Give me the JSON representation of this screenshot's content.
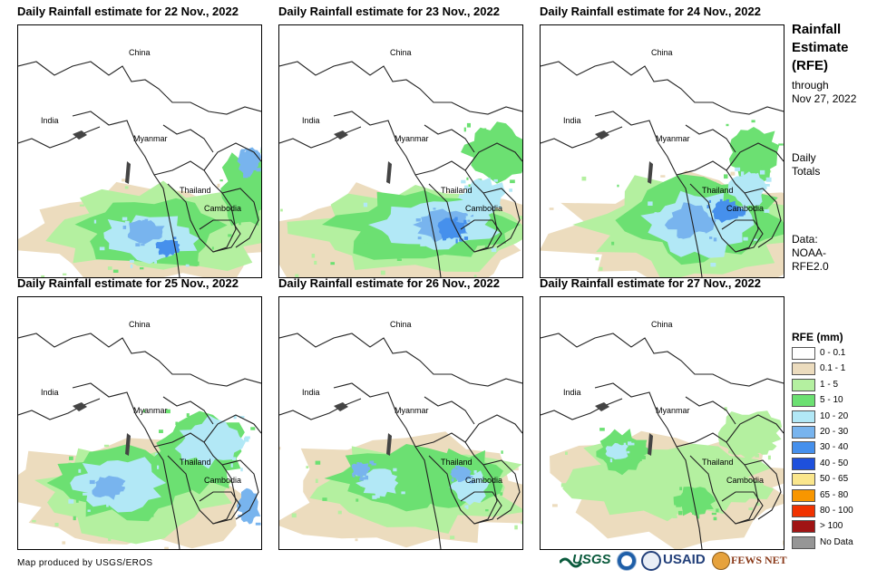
{
  "panels": [
    {
      "title": "Daily Rainfall estimate for 22 Nov., 2022"
    },
    {
      "title": "Daily Rainfall estimate for 23 Nov., 2022"
    },
    {
      "title": "Daily Rainfall estimate for 24 Nov., 2022"
    },
    {
      "title": "Daily Rainfall estimate for 25 Nov., 2022"
    },
    {
      "title": "Daily Rainfall estimate for 26 Nov., 2022"
    },
    {
      "title": "Daily Rainfall estimate for 27 Nov., 2022"
    }
  ],
  "map_labels": {
    "china": "China",
    "india": "India",
    "myanmar": "Myanmar",
    "thailand": "Thailand",
    "cambodia": "Cambodia"
  },
  "sidebar": {
    "title_line1": "Rainfall",
    "title_line2": "Estimate",
    "title_line3": "(RFE)",
    "through_label": "through",
    "through_date": "Nov 27, 2022",
    "daily_line1": "Daily",
    "daily_line2": "Totals",
    "data_line1": "Data:",
    "data_line2": "NOAA-",
    "data_line3": "RFE2.0"
  },
  "legend": {
    "title": "RFE (mm)",
    "items": [
      {
        "label": "0 - 0.1",
        "color": "#ffffff"
      },
      {
        "label": "0.1 - 1",
        "color": "#ecdcbe"
      },
      {
        "label": "1 - 5",
        "color": "#b4f0a0"
      },
      {
        "label": "5 - 10",
        "color": "#6ce072"
      },
      {
        "label": "10 - 20",
        "color": "#b2e8f6"
      },
      {
        "label": "20 - 30",
        "color": "#78b4ee"
      },
      {
        "label": "30 - 40",
        "color": "#4690ec"
      },
      {
        "label": "40 - 50",
        "color": "#1e50dc"
      },
      {
        "label": "50 - 65",
        "color": "#fae68c"
      },
      {
        "label": "65 - 80",
        "color": "#f89600"
      },
      {
        "label": "80 - 100",
        "color": "#f03200"
      },
      {
        "label": "> 100",
        "color": "#a01414"
      },
      {
        "label": "No Data",
        "color": "#969696"
      }
    ]
  },
  "credit": "Map produced by USGS/EROS",
  "logos": {
    "usgs": "USGS",
    "usaid": "USAID",
    "fewsnet": "FEWS NET"
  }
}
